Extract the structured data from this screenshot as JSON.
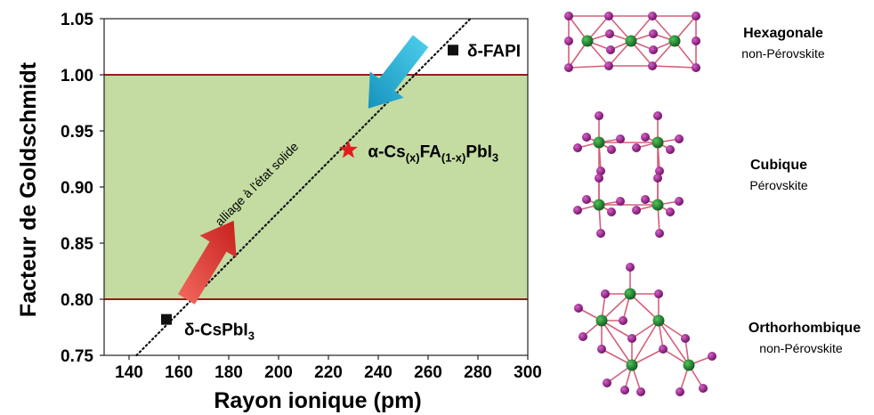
{
  "chart_data": {
    "type": "scatter",
    "xlabel": "Rayon ionique (pm)",
    "ylabel": "Facteur de Goldschmidt",
    "xlim": [
      130,
      300
    ],
    "ylim": [
      0.75,
      1.05
    ],
    "xticks": [
      140,
      160,
      180,
      200,
      220,
      240,
      260,
      280,
      300
    ],
    "yticks": [
      "0.75",
      "0.80",
      "0.85",
      "0.90",
      "0.95",
      "1.00",
      "1.05"
    ],
    "band": {
      "y_min": 0.8,
      "y_max": 1.0,
      "color": "#c4dba2",
      "line_color": "#9a1a1a"
    },
    "trend_line": {
      "x": [
        143,
        277
      ],
      "y": [
        0.75,
        1.05
      ],
      "label": "alliage à l'état solide"
    },
    "points": [
      {
        "name": "δ-CsPbI",
        "subscript": "3",
        "x": 155,
        "y": 0.782,
        "marker": "square",
        "color": "#111111"
      },
      {
        "name": "δ-FAPI",
        "x": 270,
        "y": 1.022,
        "marker": "square",
        "color": "#111111"
      },
      {
        "name": "α-Cs",
        "sub1": "(x)",
        "mid": "FA",
        "sub2": "(1-x)",
        "tail": "PbI",
        "sub3": "3",
        "x": 228,
        "y": 0.933,
        "marker": "star",
        "color": "#e31c1c"
      }
    ],
    "arrows": [
      {
        "from": [
          163,
          0.8
        ],
        "to": [
          182,
          0.87
        ],
        "color": "#dd3b34"
      },
      {
        "from": [
          257,
          1.03
        ],
        "to": [
          236,
          0.97
        ],
        "color": "#1fb0d8"
      }
    ]
  },
  "structures": [
    {
      "title": "Hexagonale",
      "subtitle": "non-Pérovskite"
    },
    {
      "title": "Cubique",
      "subtitle": "Pérovskite"
    },
    {
      "title": "Orthorhombique",
      "subtitle": "non-Pérovskite"
    }
  ],
  "colors": {
    "atom_green": "#1d7a2a",
    "atom_magenta": "#9b1d8e",
    "bond": "#d4607a"
  }
}
